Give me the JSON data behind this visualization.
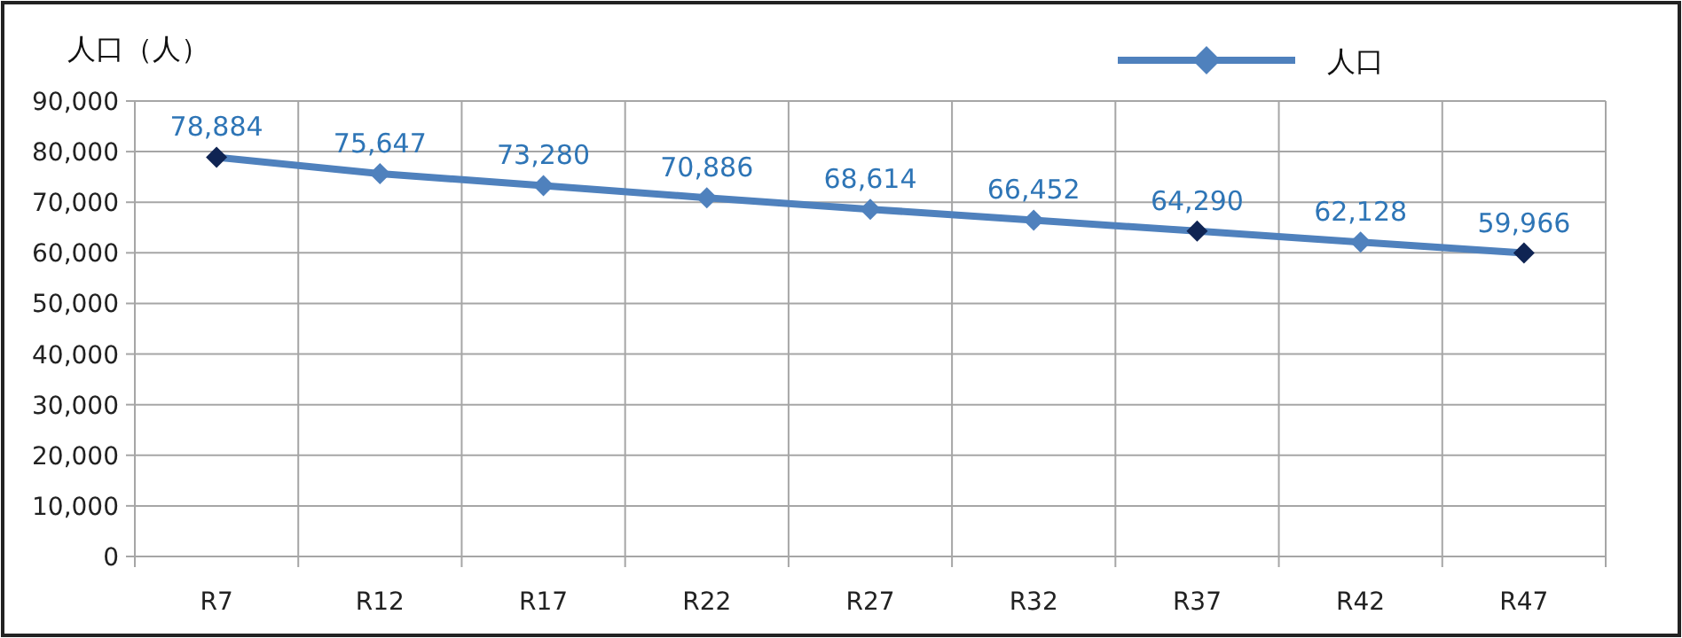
{
  "chart_data": {
    "type": "line",
    "ylabel": "人口（人）",
    "categories": [
      "R7",
      "R12",
      "R17",
      "R22",
      "R27",
      "R32",
      "R37",
      "R42",
      "R47"
    ],
    "series": [
      {
        "name": "人口",
        "color": "#4f81bd",
        "colors": [
          "#0f2453",
          "#4f81bd",
          "#4f81bd",
          "#4f81bd",
          "#4f81bd",
          "#4f81bd",
          "#0f2453",
          "#4f81bd",
          "#0f2453"
        ],
        "values": [
          78884,
          75647,
          73280,
          70886,
          68614,
          66452,
          64290,
          62128,
          59966
        ],
        "value_labels": [
          "78,884",
          "75,647",
          "73,280",
          "70,886",
          "68,614",
          "66,452",
          "64,290",
          "62,128",
          "59,966"
        ]
      }
    ],
    "ylim": [
      0,
      90000
    ],
    "yticks": [
      {
        "value": 0,
        "label": "0"
      },
      {
        "value": 10000,
        "label": "10,000"
      },
      {
        "value": 20000,
        "label": "20,000"
      },
      {
        "value": 30000,
        "label": "30,000"
      },
      {
        "value": 40000,
        "label": "40,000"
      },
      {
        "value": 50000,
        "label": "50,000"
      },
      {
        "value": 60000,
        "label": "60,000"
      },
      {
        "value": 70000,
        "label": "70,000"
      },
      {
        "value": 80000,
        "label": "80,000"
      },
      {
        "value": 90000,
        "label": "90,000"
      }
    ],
    "grid": true,
    "legend": "top right",
    "marker": "diamond"
  }
}
